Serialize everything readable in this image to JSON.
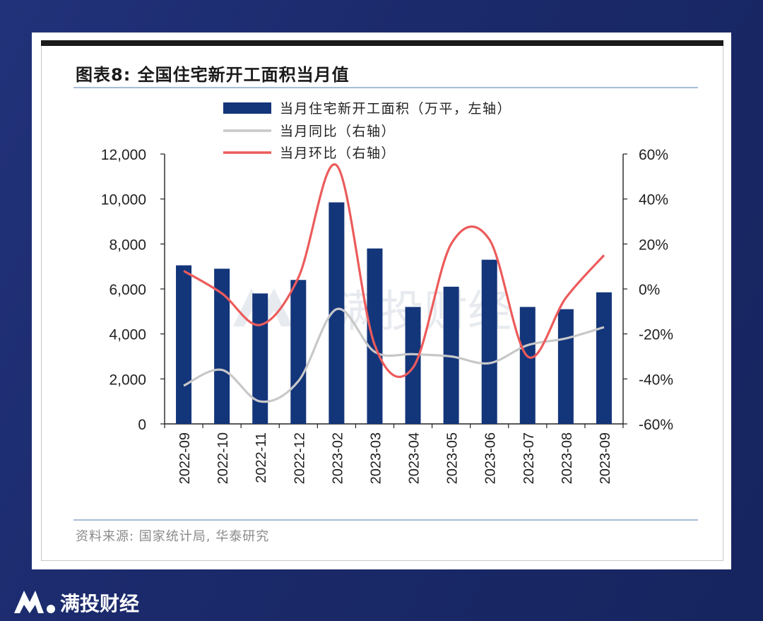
{
  "header": {
    "title": "图表8:  全国住宅新开工面积当月值"
  },
  "source": "资料来源: 国家统计局, 华泰研究",
  "watermark": "满投财经",
  "footer": {
    "brand": "满投财经"
  },
  "colors": {
    "bar": "#13357a",
    "yoy": "#c8c8c8",
    "mom": "#ec5b5b",
    "background": "#1b2a6b"
  },
  "chart_data": {
    "type": "bar",
    "categories": [
      "2022-09",
      "2022-10",
      "2022-11",
      "2022-12",
      "2023-02",
      "2023-03",
      "2023-04",
      "2023-05",
      "2023-06",
      "2023-07",
      "2023-08",
      "2023-09"
    ],
    "series": [
      {
        "name": "当月住宅新开工面积（万平，左轴）",
        "type": "bar",
        "axis": "left",
        "values": [
          7050,
          6900,
          5800,
          6400,
          9850,
          7800,
          5200,
          6100,
          7300,
          5200,
          5100,
          5850
        ]
      },
      {
        "name": "当月同比（右轴）",
        "type": "line",
        "axis": "right",
        "values": [
          -43,
          -36,
          -50,
          -41,
          -9,
          -28,
          -29,
          -30,
          -33,
          -25,
          -22,
          -17
        ]
      },
      {
        "name": "当月环比（右轴）",
        "type": "line",
        "axis": "right",
        "values": [
          8,
          -2,
          -16,
          5,
          55,
          -25,
          -35,
          20,
          22,
          -30,
          -4,
          15
        ]
      }
    ],
    "y_left": {
      "min": 0,
      "max": 12000,
      "ticks": [
        0,
        2000,
        4000,
        6000,
        8000,
        10000,
        12000
      ],
      "tick_labels": [
        "0",
        "2,000",
        "4,000",
        "6,000",
        "8,000",
        "10,000",
        "12,000"
      ]
    },
    "y_right": {
      "min": -60,
      "max": 60,
      "ticks": [
        -60,
        -40,
        -20,
        0,
        20,
        40,
        60
      ],
      "tick_labels": [
        "-60%",
        "-40%",
        "-20%",
        "0%",
        "20%",
        "40%",
        "60%"
      ]
    },
    "legend_position": "top-center"
  }
}
